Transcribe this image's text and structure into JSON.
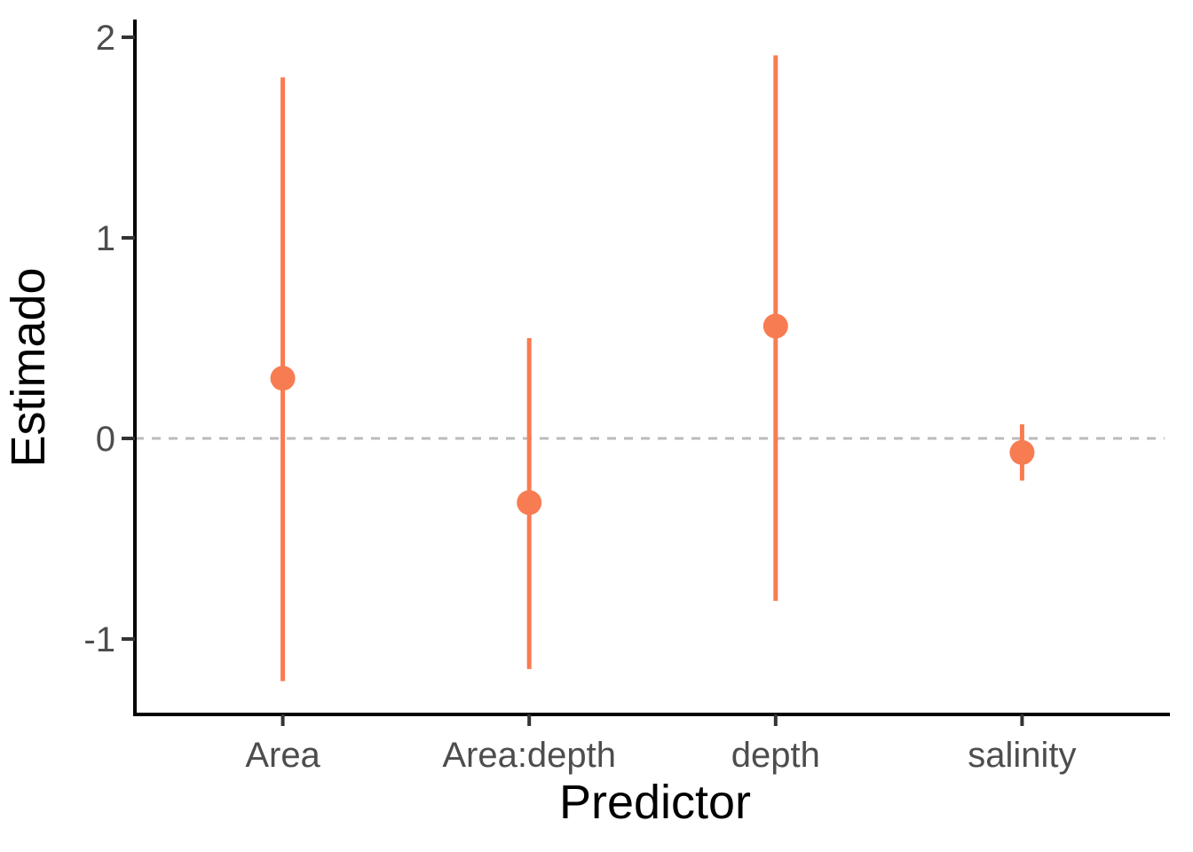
{
  "chart_data": {
    "type": "scatter",
    "subtype": "coefficient-plot-with-error-bars",
    "title": "",
    "xlabel": "Predictor",
    "ylabel": "Estimado",
    "categories": [
      "Area",
      "Area:depth",
      "depth",
      "salinity"
    ],
    "series": [
      {
        "name": "estimate",
        "values": [
          0.3,
          -0.32,
          0.56,
          -0.07
        ],
        "ci_low": [
          -1.21,
          -1.15,
          -0.81,
          -0.21
        ],
        "ci_high": [
          1.8,
          0.5,
          1.91,
          0.07
        ]
      }
    ],
    "y_ticks": [
      -1,
      0,
      1,
      2
    ],
    "ylim": [
      -1.38,
      2.08
    ],
    "reference_line": {
      "y": 0,
      "style": "dashed",
      "color": "#BBBBBB"
    },
    "grid": "off",
    "legend": "none",
    "colors": {
      "point": "#F87C51",
      "axis_line": "#000000",
      "tick_mark": "#333333",
      "tick_text": "#4D4D4D",
      "axis_title_text": "#000000",
      "background": "#FFFFFF"
    }
  }
}
